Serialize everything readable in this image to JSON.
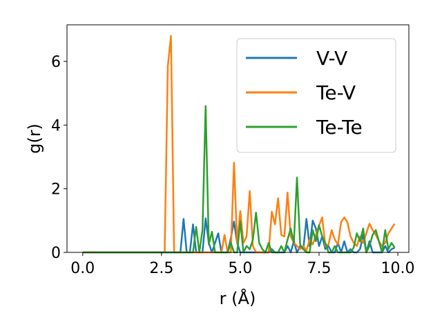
{
  "chart_data": {
    "type": "line",
    "xlabel": "r (Å)",
    "ylabel": "g(r)",
    "xlim": [
      -0.5,
      10.35
    ],
    "ylim": [
      0,
      7.15
    ],
    "xticks": [
      0.0,
      2.5,
      5.0,
      7.5,
      10.0
    ],
    "xtick_labels": [
      "0.0",
      "2.5",
      "5.0",
      "7.5",
      "10.0"
    ],
    "yticks": [
      0,
      2,
      4,
      6
    ],
    "ytick_labels": [
      "0",
      "2",
      "4",
      "6"
    ],
    "grid": false,
    "legend_position": "top-right",
    "series": [
      {
        "name": "V-V",
        "color": "#1f77b4",
        "x": [
          0.0,
          3.0,
          3.1,
          3.2,
          3.3,
          3.4,
          3.5,
          3.6,
          3.7,
          3.8,
          3.9,
          4.0,
          4.1,
          4.2,
          4.3,
          4.4,
          4.5,
          4.6,
          4.7,
          4.8,
          4.9,
          5.0,
          5.1,
          5.2,
          5.3,
          5.4,
          5.5,
          5.6,
          5.7,
          5.8,
          5.9,
          6.0,
          6.1,
          6.2,
          6.3,
          6.4,
          6.5,
          6.6,
          6.7,
          6.8,
          6.9,
          7.0,
          7.1,
          7.2,
          7.3,
          7.4,
          7.5,
          7.6,
          7.7,
          7.8,
          7.9,
          8.0,
          8.1,
          8.2,
          8.3,
          8.4,
          8.5,
          8.6,
          8.7,
          8.8,
          8.9,
          9.0,
          9.1,
          9.2,
          9.3,
          9.4,
          9.5,
          9.6,
          9.7,
          9.8,
          9.9
        ],
        "y": [
          0.0,
          0.0,
          0.0,
          1.05,
          0.0,
          0.0,
          0.88,
          0.0,
          0.0,
          0.0,
          1.07,
          0.3,
          0.0,
          0.3,
          0.6,
          0.0,
          0.0,
          0.0,
          0.45,
          0.97,
          0.3,
          0.0,
          0.0,
          0.0,
          0.0,
          0.0,
          0.0,
          0.0,
          0.0,
          0.0,
          0.0,
          0.1,
          0.0,
          0.0,
          0.0,
          0.0,
          0.2,
          0.0,
          0.35,
          0.0,
          0.2,
          0.1,
          1.05,
          0.2,
          1.0,
          0.75,
          0.2,
          0.5,
          0.1,
          0.2,
          0.0,
          0.0,
          0.3,
          0.0,
          0.35,
          0.0,
          0.1,
          0.0,
          0.0,
          0.1,
          0.55,
          0.0,
          0.35,
          0.0,
          0.0,
          0.0,
          0.0,
          0.2,
          0.0,
          0.1,
          0.15
        ]
      },
      {
        "name": "Te-V",
        "color": "#ff7f0e",
        "x": [
          0.0,
          2.6,
          2.7,
          2.8,
          2.9,
          3.0,
          3.1,
          3.2,
          3.3,
          3.4,
          3.5,
          3.6,
          3.7,
          3.8,
          3.9,
          4.0,
          4.1,
          4.2,
          4.3,
          4.4,
          4.5,
          4.6,
          4.7,
          4.8,
          4.9,
          5.0,
          5.1,
          5.2,
          5.3,
          5.4,
          5.5,
          5.6,
          5.7,
          5.8,
          5.9,
          6.0,
          6.1,
          6.2,
          6.3,
          6.4,
          6.5,
          6.6,
          6.7,
          6.8,
          6.9,
          7.0,
          7.1,
          7.2,
          7.3,
          7.4,
          7.5,
          7.6,
          7.7,
          7.8,
          7.9,
          8.0,
          8.1,
          8.2,
          8.3,
          8.4,
          8.5,
          8.6,
          8.7,
          8.8,
          8.9,
          9.0,
          9.1,
          9.2,
          9.3,
          9.4,
          9.5,
          9.6,
          9.7,
          9.8,
          9.9
        ],
        "y": [
          0.0,
          0.0,
          5.85,
          6.8,
          0.0,
          0.0,
          0.0,
          0.0,
          0.0,
          0.0,
          0.0,
          0.0,
          0.0,
          0.0,
          0.0,
          0.0,
          0.0,
          0.0,
          0.0,
          0.0,
          0.55,
          0.0,
          0.0,
          2.82,
          0.3,
          1.3,
          0.3,
          0.5,
          1.93,
          0.2,
          0.0,
          0.0,
          0.0,
          0.0,
          0.0,
          1.28,
          0.88,
          1.7,
          0.55,
          0.5,
          1.88,
          0.5,
          0.3,
          0.2,
          0.1,
          0.2,
          0.05,
          0.4,
          0.25,
          0.55,
          0.85,
          1.1,
          0.2,
          0.25,
          0.7,
          0.4,
          0.25,
          0.95,
          1.1,
          0.95,
          0.5,
          0.3,
          0.2,
          0.5,
          0.3,
          0.6,
          0.9,
          0.7,
          0.55,
          0.35,
          0.2,
          0.3,
          0.6,
          0.75,
          0.9
        ]
      },
      {
        "name": "Te-Te",
        "color": "#2ca02c",
        "x": [
          0.0,
          3.3,
          3.4,
          3.5,
          3.6,
          3.7,
          3.8,
          3.9,
          4.0,
          4.1,
          4.2,
          4.3,
          4.4,
          4.5,
          4.6,
          4.7,
          4.8,
          4.9,
          5.0,
          5.1,
          5.2,
          5.3,
          5.4,
          5.5,
          5.6,
          5.7,
          5.8,
          5.9,
          6.0,
          6.1,
          6.2,
          6.3,
          6.4,
          6.5,
          6.6,
          6.7,
          6.8,
          6.9,
          7.0,
          7.1,
          7.2,
          7.3,
          7.4,
          7.5,
          7.6,
          7.7,
          7.8,
          7.9,
          8.0,
          8.1,
          8.2,
          8.3,
          8.4,
          8.5,
          8.6,
          8.7,
          8.8,
          8.9,
          9.0,
          9.1,
          9.2,
          9.3,
          9.4,
          9.5,
          9.6,
          9.7,
          9.8,
          9.9
        ],
        "y": [
          0.0,
          0.0,
          0.0,
          0.0,
          0.8,
          0.0,
          0.7,
          4.6,
          0.25,
          0.65,
          0.0,
          0.0,
          0.0,
          0.0,
          0.0,
          0.3,
          0.0,
          0.0,
          0.98,
          0.0,
          0.2,
          0.1,
          0.4,
          1.25,
          0.3,
          0.1,
          0.0,
          0.3,
          0.0,
          0.0,
          0.0,
          0.2,
          0.0,
          0.4,
          0.75,
          0.3,
          2.35,
          0.25,
          0.1,
          0.0,
          0.0,
          0.7,
          0.35,
          0.85,
          0.5,
          0.3,
          0.0,
          0.0,
          0.2,
          0.0,
          0.0,
          0.0,
          0.0,
          0.0,
          0.15,
          0.6,
          0.35,
          0.75,
          0.0,
          0.2,
          0.55,
          0.7,
          0.35,
          0.0,
          0.7,
          0.1,
          0.3,
          0.15
        ]
      }
    ]
  }
}
